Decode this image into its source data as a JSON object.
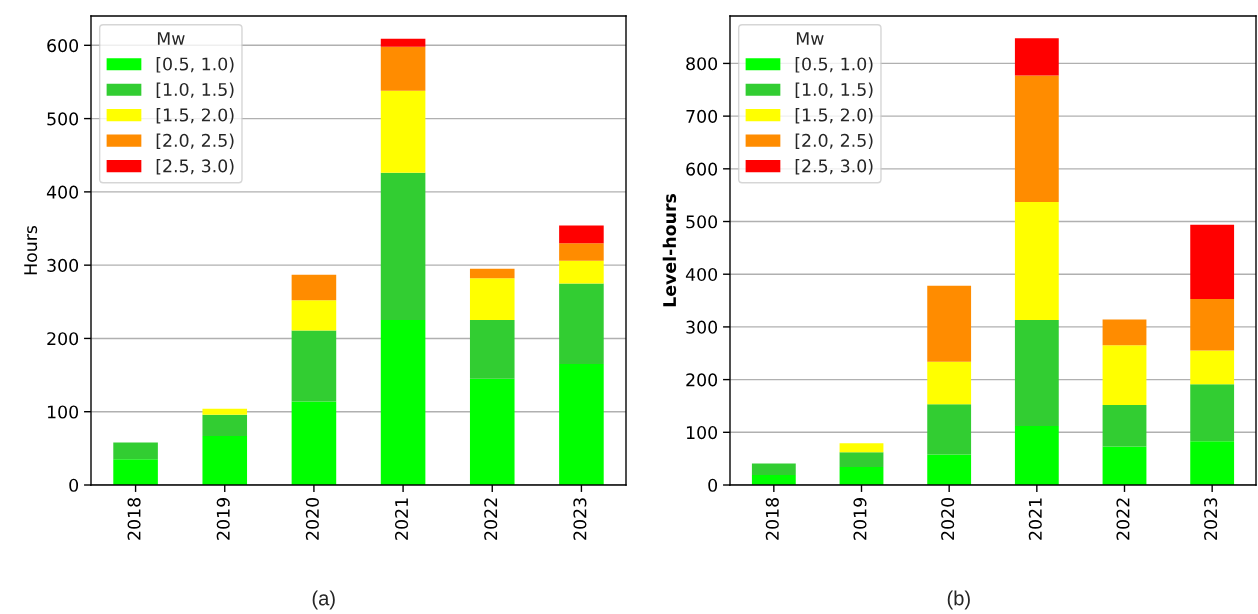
{
  "chart_data": [
    {
      "type": "bar",
      "stacked": true,
      "categories": [
        "2018",
        "2019",
        "2020",
        "2021",
        "2022",
        "2023"
      ],
      "ylabel": "Hours",
      "legend_title": "Mw",
      "legend": "top left",
      "grid": "y",
      "ylim": [
        0,
        640
      ],
      "yticks": [
        0,
        100,
        200,
        300,
        400,
        500,
        600
      ],
      "annotations": [
        "(a)"
      ],
      "series": [
        {
          "name": "[0.5, 1.0)",
          "color": "#00ff00",
          "values": [
            35,
            67,
            114,
            225,
            145,
            165
          ]
        },
        {
          "name": "[1.0, 1.5)",
          "color": "#32cd32",
          "values": [
            23,
            29,
            97,
            201,
            80,
            110
          ]
        },
        {
          "name": "[1.5, 2.0)",
          "color": "#ffff00",
          "values": [
            null,
            8,
            41,
            112,
            57,
            31
          ]
        },
        {
          "name": "[2.0, 2.5)",
          "color": "#ff8c00",
          "values": [
            null,
            null,
            35,
            60,
            13,
            24
          ]
        },
        {
          "name": "[2.5, 3.0)",
          "color": "#ff0000",
          "values": [
            null,
            null,
            null,
            11,
            null,
            24
          ]
        }
      ]
    },
    {
      "type": "bar",
      "stacked": true,
      "categories": [
        "2018",
        "2019",
        "2020",
        "2021",
        "2022",
        "2023"
      ],
      "ylabel": "Level-hours",
      "legend_title": "Mw",
      "legend": "top left",
      "grid": "y",
      "ylim": [
        0,
        890
      ],
      "yticks": [
        0,
        100,
        200,
        300,
        400,
        500,
        600,
        700,
        800
      ],
      "annotations": [
        "(b)"
      ],
      "series": [
        {
          "name": "[0.5, 1.0)",
          "color": "#00ff00",
          "values": [
            19,
            34,
            58,
            112,
            73,
            83
          ]
        },
        {
          "name": "[1.0, 1.5)",
          "color": "#32cd32",
          "values": [
            22,
            28,
            95,
            201,
            79,
            108
          ]
        },
        {
          "name": "[1.5, 2.0)",
          "color": "#ffff00",
          "values": [
            null,
            17,
            81,
            224,
            113,
            64
          ]
        },
        {
          "name": "[2.0, 2.5)",
          "color": "#ff8c00",
          "values": [
            null,
            null,
            144,
            240,
            49,
            98
          ]
        },
        {
          "name": "[2.5, 3.0)",
          "color": "#ff0000",
          "values": [
            null,
            null,
            null,
            71,
            null,
            141
          ]
        }
      ]
    }
  ]
}
